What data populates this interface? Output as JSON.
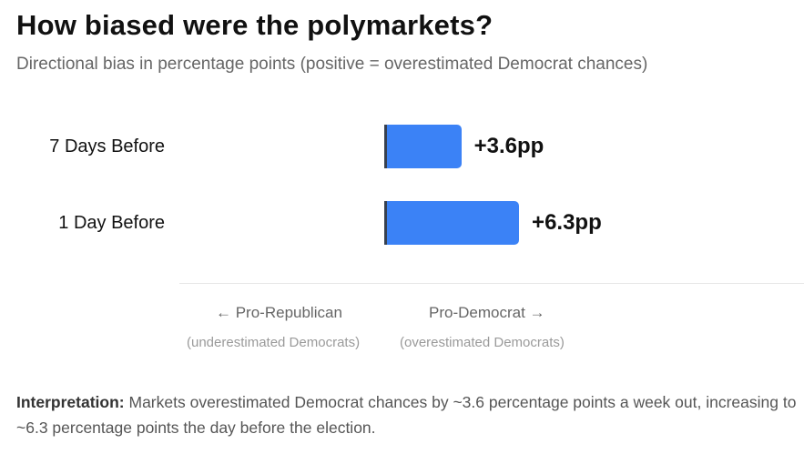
{
  "header": {
    "title": "How biased were the polymarkets?",
    "subtitle": "Directional bias in percentage points (positive = overestimated Democrat chances)"
  },
  "chart_data": {
    "type": "bar",
    "orientation": "horizontal",
    "categories": [
      "7 Days Before",
      "1 Day Before"
    ],
    "values": [
      3.6,
      6.3
    ],
    "value_labels": [
      "+3.6pp",
      "+6.3pp"
    ],
    "unit": "pp",
    "bar_color": "#3b82f6",
    "baseline_color": "#374151"
  },
  "direction_legend": {
    "left_label": "← Pro-Republican",
    "left_sub": "(underestimated Democrats)",
    "right_label": "Pro-Democrat →",
    "right_sub": "(overestimated Democrats)"
  },
  "interpretation": {
    "label": "Interpretation:",
    "text": " Markets overestimated Democrat chances by ~3.6 percentage points a week out, increasing to ~6.3 percentage points the day before the election."
  }
}
